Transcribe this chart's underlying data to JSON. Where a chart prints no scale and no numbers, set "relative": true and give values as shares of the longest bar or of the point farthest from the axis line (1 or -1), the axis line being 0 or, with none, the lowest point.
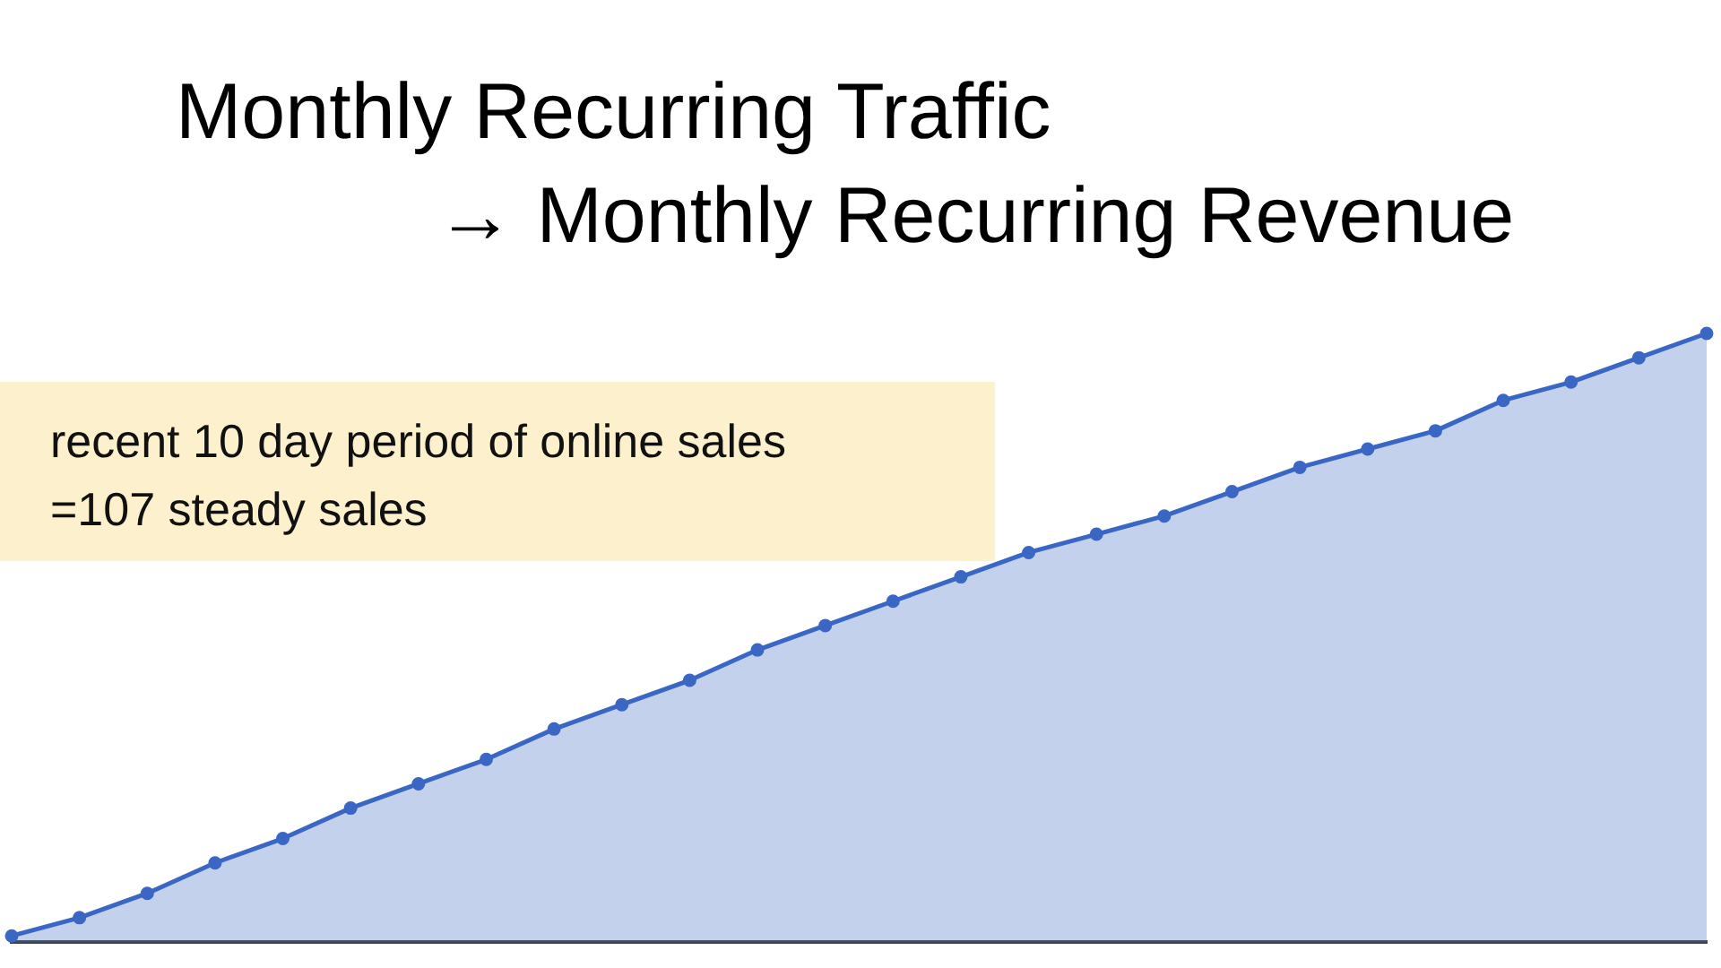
{
  "chart_data": {
    "type": "area",
    "title": "Monthly Recurring Traffic",
    "subtitle": "→ Monthly Recurring Revenue",
    "annotations": [
      "recent 10 day period of online sales",
      "=107 steady sales"
    ],
    "relative": true,
    "categories": [
      null,
      null,
      null,
      null,
      null,
      null,
      null,
      null,
      null,
      null,
      null,
      null,
      null,
      null,
      null,
      null,
      null,
      null,
      null,
      null,
      null,
      null,
      null,
      null,
      null,
      null
    ],
    "series": [
      {
        "color": "#3a66c4",
        "values": [
          0.01,
          0.04,
          0.08,
          0.13,
          0.17,
          0.22,
          0.26,
          0.3,
          0.35,
          0.39,
          0.43,
          0.48,
          0.52,
          0.56,
          0.6,
          0.64,
          0.67,
          0.7,
          0.74,
          0.78,
          0.81,
          0.84,
          0.89,
          0.92,
          0.96,
          1
        ]
      }
    ],
    "marker": "circle",
    "legend": false
  }
}
